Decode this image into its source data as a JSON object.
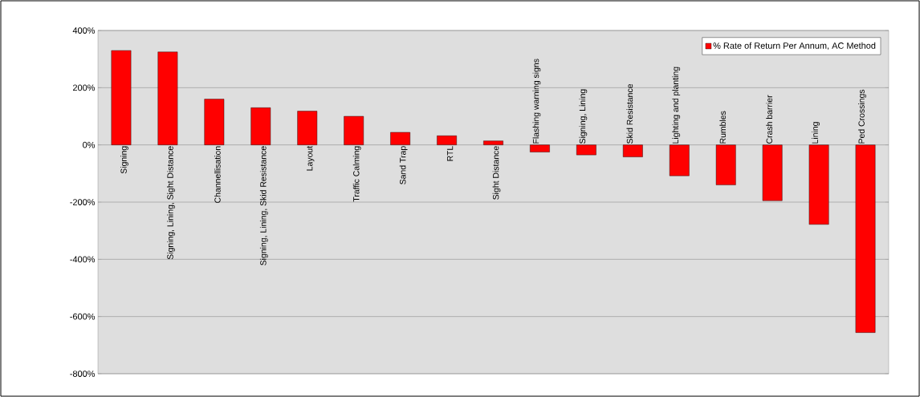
{
  "chart_data": {
    "type": "bar",
    "categories": [
      "Signing",
      "Signing, Lining, Sight Distance",
      "Channellisation",
      "Signing, Lining, Skid Resistance",
      "Layout",
      "Traffic Calming",
      "Sand Trap",
      "RTL",
      "Sight Distance",
      "Flashing warning signs",
      "Signing, Lining",
      "Skid Resistance",
      "Lighting and planting",
      "Rumbles",
      "Crash barrier",
      "Lining",
      "Ped Crossings"
    ],
    "series": [
      {
        "name": "% Rate of Return Per Annum, AC Method",
        "color": "#ff0000",
        "values": [
          330,
          325,
          160,
          130,
          118,
          100,
          44,
          32,
          14,
          -25,
          -35,
          -42,
          -108,
          -140,
          -195,
          -278,
          -656
        ]
      }
    ],
    "ylim": [
      -800,
      400
    ],
    "yticks": [
      {
        "value": -800,
        "label": "-800%"
      },
      {
        "value": -600,
        "label": "-600%"
      },
      {
        "value": -400,
        "label": "-400%"
      },
      {
        "value": -200,
        "label": "-200%"
      },
      {
        "value": 0,
        "label": "0%"
      },
      {
        "value": 200,
        "label": "200%"
      },
      {
        "value": 400,
        "label": "400%"
      }
    ],
    "grid": "y",
    "legend": "top right"
  }
}
